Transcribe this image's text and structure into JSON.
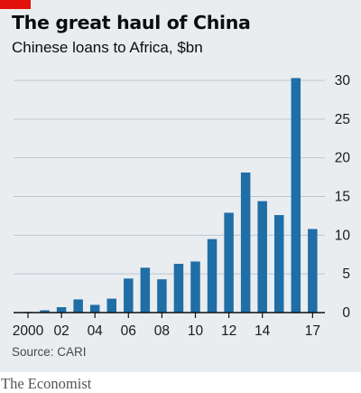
{
  "brand": {
    "name": "The Economist",
    "accent_color": "#e3120b",
    "panel_color": "#e9edf0",
    "bar_color": "#1f6ea6"
  },
  "chart_data": {
    "type": "bar",
    "title": "The great haul of China",
    "subtitle": "Chinese loans to Africa, $bn",
    "source": "Source: CARI",
    "x": [
      2000,
      2001,
      2002,
      2003,
      2004,
      2005,
      2006,
      2007,
      2008,
      2009,
      2010,
      2011,
      2012,
      2013,
      2014,
      2015,
      2016,
      2017
    ],
    "x_tick_labels": [
      {
        "x": 2000,
        "label": "2000"
      },
      {
        "x": 2002,
        "label": "02"
      },
      {
        "x": 2004,
        "label": "04"
      },
      {
        "x": 2006,
        "label": "06"
      },
      {
        "x": 2008,
        "label": "08"
      },
      {
        "x": 2010,
        "label": "10"
      },
      {
        "x": 2012,
        "label": "12"
      },
      {
        "x": 2014,
        "label": "14"
      },
      {
        "x": 2017,
        "label": "17"
      }
    ],
    "values": [
      0.1,
      0.3,
      0.7,
      1.7,
      1.0,
      1.8,
      4.4,
      5.8,
      4.3,
      6.3,
      6.6,
      9.5,
      12.9,
      18.1,
      14.4,
      12.6,
      30.3,
      10.8
    ],
    "ylim": [
      0,
      30
    ],
    "y_ticks": [
      0,
      5,
      10,
      15,
      20,
      25,
      30
    ],
    "y_axis_side": "right",
    "grid": true,
    "xlabel": "",
    "ylabel": ""
  }
}
